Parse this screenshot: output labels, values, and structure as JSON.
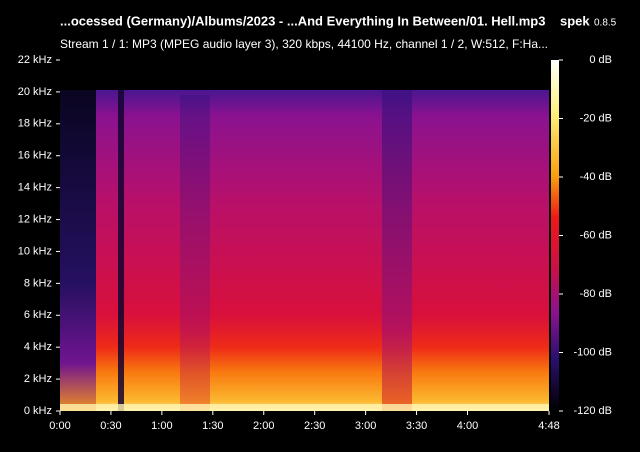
{
  "chart_data": {
    "type": "spectrogram",
    "title": "...ocessed (Germany)/Albums/2023 - ...And Everything In Between/01. Hell.mp3",
    "app_name": "spek",
    "app_version": "0.8.5",
    "subtitle": "Stream 1 / 1: MP3 (MPEG audio layer 3), 320 kbps, 44100 Hz, channel 1 / 2, W:512, F:Ha...",
    "xlim": [
      0,
      288
    ],
    "xticks": [
      {
        "value": 0,
        "label": "0:00"
      },
      {
        "value": 30,
        "label": "0:30"
      },
      {
        "value": 60,
        "label": "1:00"
      },
      {
        "value": 90,
        "label": "1:30"
      },
      {
        "value": 120,
        "label": "2:00"
      },
      {
        "value": 150,
        "label": "2:30"
      },
      {
        "value": 180,
        "label": "3:00"
      },
      {
        "value": 210,
        "label": "3:30"
      },
      {
        "value": 240,
        "label": "4:00"
      },
      {
        "value": 288,
        "label": "4:48"
      }
    ],
    "ylim": [
      0,
      22
    ],
    "yticks": [
      {
        "value": 0,
        "label": "0 kHz"
      },
      {
        "value": 2,
        "label": "2 kHz"
      },
      {
        "value": 4,
        "label": "4 kHz"
      },
      {
        "value": 6,
        "label": "6 kHz"
      },
      {
        "value": 8,
        "label": "8 kHz"
      },
      {
        "value": 10,
        "label": "10 kHz"
      },
      {
        "value": 12,
        "label": "12 kHz"
      },
      {
        "value": 14,
        "label": "14 kHz"
      },
      {
        "value": 16,
        "label": "16 kHz"
      },
      {
        "value": 18,
        "label": "18 kHz"
      },
      {
        "value": 20,
        "label": "20 kHz"
      },
      {
        "value": 22,
        "label": "22 kHz"
      }
    ],
    "colorbar_lim": [
      -120,
      0
    ],
    "colorbar_ticks": [
      {
        "value": 0,
        "label": "0 dB"
      },
      {
        "value": -20,
        "label": "-20 dB"
      },
      {
        "value": -40,
        "label": "-40 dB"
      },
      {
        "value": -60,
        "label": "-60 dB"
      },
      {
        "value": -80,
        "label": "-80 dB"
      },
      {
        "value": -100,
        "label": "-100 dB"
      },
      {
        "value": -120,
        "label": "-120 dB"
      }
    ]
  }
}
